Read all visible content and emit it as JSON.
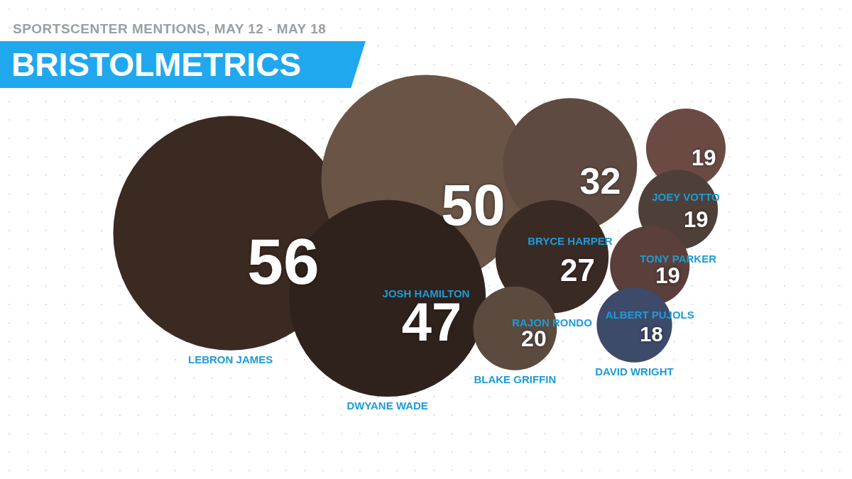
{
  "chart_data": {
    "type": "bubble",
    "title": "BRISTOLMETRICS",
    "subtitle": "SPORTSCENTER MENTIONS, MAY 12 - MAY 18",
    "categories": [
      "LEBRON JAMES",
      "JOSH HAMILTON",
      "DWYANE WADE",
      "BRYCE HARPER",
      "RAJON RONDO",
      "BLAKE GRIFFIN",
      "JOEY VOTTO",
      "TONY PARKER",
      "ALBERT PUJOLS",
      "DAVID WRIGHT"
    ],
    "values": [
      56,
      50,
      47,
      32,
      27,
      20,
      19,
      19,
      19,
      18
    ],
    "colors": [
      "#3b2a22",
      "#6a5446",
      "#2f221c",
      "#5e4a40",
      "#3a2a24",
      "#5b4a3e",
      "#6b4a44",
      "#4e4038",
      "#5a3f3a",
      "#3d4a6a"
    ],
    "data_labels": true,
    "tick_labels": false,
    "grid": false
  }
}
